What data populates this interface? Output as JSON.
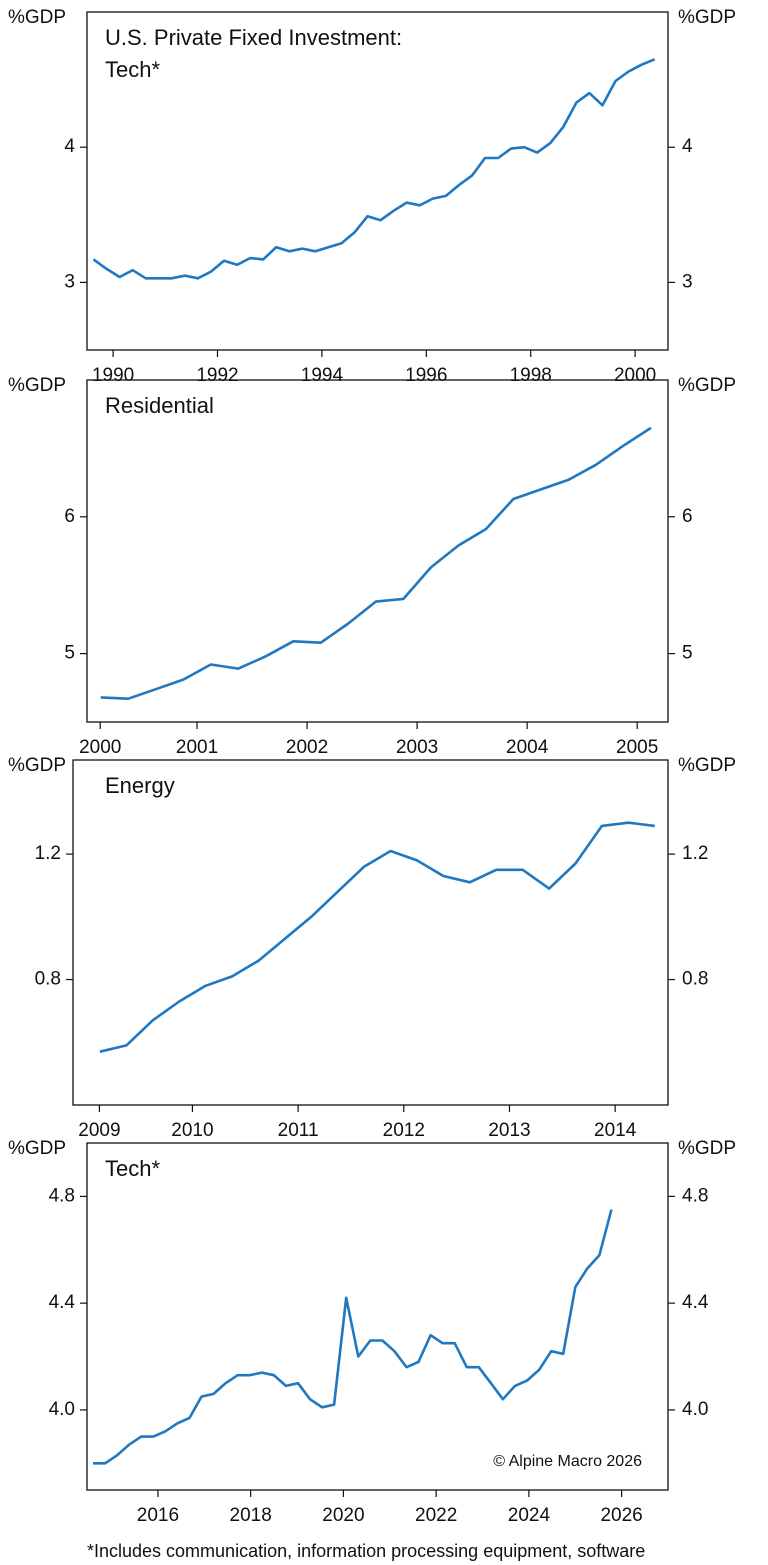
{
  "chart_data": [
    {
      "type": "line",
      "title": [
        "U.S. Private Fixed Investment:",
        "Tech*"
      ],
      "y_label": "%GDP",
      "y2_label": "%GDP",
      "x": [
        1990.125,
        1990.375,
        1990.625,
        1990.875,
        1991.125,
        1991.375,
        1991.625,
        1991.875,
        1992.125,
        1992.375,
        1992.625,
        1992.875,
        1993.125,
        1993.375,
        1993.625,
        1993.875,
        1994.125,
        1994.375,
        1994.625,
        1994.875,
        1995.125,
        1995.375,
        1995.625,
        1995.875,
        1996.125,
        1996.375,
        1996.625,
        1996.875,
        1997.125,
        1997.375,
        1997.625,
        1997.875,
        1998.125,
        1998.375,
        1998.625,
        1998.875,
        1999.125,
        1999.375,
        1999.625,
        1999.875,
        2000.125,
        2000.375,
        2000.625,
        2000.875
      ],
      "series": [
        {
          "color": "#1f78c1",
          "values": [
            3.17,
            3.1,
            3.04,
            3.09,
            3.03,
            3.03,
            3.03,
            3.05,
            3.03,
            3.08,
            3.16,
            3.13,
            3.18,
            3.17,
            3.26,
            3.23,
            3.25,
            3.23,
            3.26,
            3.29,
            3.37,
            3.49,
            3.46,
            3.53,
            3.59,
            3.57,
            3.62,
            3.64,
            3.72,
            3.79,
            3.92,
            3.92,
            3.99,
            4.0,
            3.96,
            4.03,
            4.15,
            4.33,
            4.4,
            4.31,
            4.49,
            4.56,
            4.61,
            4.65
          ]
        }
      ],
      "xlim": [
        1990,
        2001.13
      ],
      "xticks": [
        {
          "value": 1990.5,
          "label": "1990"
        },
        {
          "value": 1992.5,
          "label": "1992"
        },
        {
          "value": 1994.5,
          "label": "1994"
        },
        {
          "value": 1996.5,
          "label": "1996"
        },
        {
          "value": 1998.5,
          "label": "1998"
        },
        {
          "value": 2000.5,
          "label": "2000"
        }
      ],
      "ylim": [
        2.5,
        5.0
      ],
      "yticks": [
        3,
        4
      ],
      "y2lim": [
        2.5,
        5.0
      ],
      "y2ticks": [
        3,
        4
      ]
    },
    {
      "type": "line",
      "title": [
        "Residential"
      ],
      "y_label": "%GDP",
      "y2_label": "%GDP",
      "x": [
        2000.625,
        2000.875,
        2001.125,
        2001.375,
        2001.625,
        2001.875,
        2002.125,
        2002.375,
        2002.625,
        2002.875,
        2003.125,
        2003.375,
        2003.625,
        2003.875,
        2004.125,
        2004.375,
        2004.625,
        2004.875,
        2005.125,
        2005.375,
        2005.625
      ],
      "series": [
        {
          "color": "#1f78c1",
          "values": [
            4.68,
            4.67,
            4.74,
            4.81,
            4.92,
            4.89,
            4.98,
            5.09,
            5.08,
            5.22,
            5.38,
            5.4,
            5.63,
            5.79,
            5.91,
            6.13,
            6.2,
            6.27,
            6.38,
            6.52,
            6.65
          ]
        }
      ],
      "xlim": [
        2000.5,
        2005.78
      ],
      "xticks": [
        {
          "value": 2000.62,
          "label": "2000"
        },
        {
          "value": 2001.5,
          "label": "2001"
        },
        {
          "value": 2002.5,
          "label": "2002"
        },
        {
          "value": 2003.5,
          "label": "2003"
        },
        {
          "value": 2004.5,
          "label": "2004"
        },
        {
          "value": 2005.5,
          "label": "2005"
        }
      ],
      "ylim": [
        4.5,
        7.0
      ],
      "yticks": [
        5,
        6
      ],
      "y2lim": [
        4.5,
        7.0
      ],
      "y2ticks": [
        5,
        6
      ]
    },
    {
      "type": "line",
      "title": [
        "Energy"
      ],
      "y_label": "%GDP",
      "y2_label": "%GDP",
      "x": [
        2009.625,
        2009.875,
        2010.125,
        2010.375,
        2010.625,
        2010.875,
        2011.125,
        2011.375,
        2011.625,
        2011.875,
        2012.125,
        2012.375,
        2012.625,
        2012.875,
        2013.125,
        2013.375,
        2013.625,
        2013.875,
        2014.125,
        2014.375,
        2014.625,
        2014.875
      ],
      "series": [
        {
          "color": "#1f78c1",
          "values": [
            0.57,
            0.59,
            0.67,
            0.73,
            0.78,
            0.81,
            0.86,
            0.93,
            1.0,
            1.08,
            1.16,
            1.21,
            1.18,
            1.13,
            1.11,
            1.15,
            1.15,
            1.09,
            1.17,
            1.29,
            1.3,
            1.29
          ]
        }
      ],
      "xlim": [
        2009.37,
        2015.0
      ],
      "xticks": [
        {
          "value": 2009.62,
          "label": "2009"
        },
        {
          "value": 2010.5,
          "label": "2010"
        },
        {
          "value": 2011.5,
          "label": "2011"
        },
        {
          "value": 2012.5,
          "label": "2012"
        },
        {
          "value": 2013.5,
          "label": "2013"
        },
        {
          "value": 2014.5,
          "label": "2014"
        }
      ],
      "ylim": [
        0.4,
        1.5
      ],
      "yticks": [
        0.8,
        1.2
      ],
      "y2lim": [
        0.4,
        1.5
      ],
      "y2ticks": [
        0.8,
        1.2
      ]
    },
    {
      "type": "line",
      "title": [
        "Tech*"
      ],
      "y_label": "%GDP",
      "y2_label": "%GDP",
      "annotation": "© Alpine Macro 2026",
      "x": [
        2014.6,
        2014.86,
        2015.12,
        2015.38,
        2015.64,
        2015.9,
        2016.16,
        2016.42,
        2016.68,
        2016.94,
        2017.2,
        2017.46,
        2017.72,
        2017.98,
        2018.24,
        2018.5,
        2018.76,
        2019.02,
        2019.28,
        2019.54,
        2019.8,
        2020.06,
        2020.32,
        2020.58,
        2020.84,
        2021.1,
        2021.36,
        2021.62,
        2021.88,
        2022.14,
        2022.4,
        2022.66,
        2022.92,
        2023.18,
        2023.44,
        2023.7,
        2023.96,
        2024.22,
        2024.48,
        2024.74,
        2025.0,
        2025.26,
        2025.52,
        2025.78
      ],
      "series": [
        {
          "color": "#1f78c1",
          "values": [
            3.8,
            3.8,
            3.83,
            3.87,
            3.9,
            3.9,
            3.92,
            3.95,
            3.97,
            4.05,
            4.06,
            4.1,
            4.13,
            4.13,
            4.14,
            4.13,
            4.09,
            4.1,
            4.04,
            4.01,
            4.02,
            4.42,
            4.2,
            4.26,
            4.26,
            4.22,
            4.16,
            4.18,
            4.28,
            4.25,
            4.25,
            4.16,
            4.16,
            4.1,
            4.04,
            4.09,
            4.11,
            4.15,
            4.22,
            4.21,
            4.46,
            4.53,
            4.58,
            4.75
          ]
        }
      ],
      "xlim": [
        2014.47,
        2027.0
      ],
      "xticks": [
        2016,
        2018,
        2020,
        2022,
        2024,
        2026
      ],
      "ylim": [
        3.7,
        5.0
      ],
      "yticks": [
        {
          "value": 4,
          "label": "4.0"
        },
        4.4,
        4.8
      ],
      "y2lim": [
        3.7,
        5.0
      ],
      "y2ticks": [
        {
          "value": 4,
          "label": "4.0"
        },
        4.4,
        4.8
      ]
    }
  ],
  "footnote": "*Includes communication, information processing equipment, software"
}
